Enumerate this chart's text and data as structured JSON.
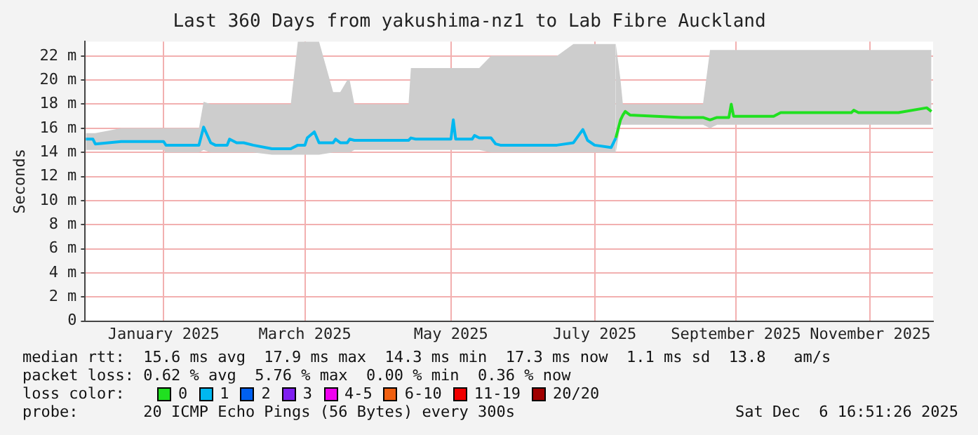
{
  "chart_data": {
    "type": "line",
    "title": "Last 360 Days from yakushima-nz1 to Lab Fibre Auckland",
    "ylabel": "Seconds",
    "xlim": [
      "2024-12-11T16:51",
      "2025-12-06T16:51"
    ],
    "xticks": [
      {
        "value": "2025-01-14",
        "label": "January 2025"
      },
      {
        "value": "2025-03-15",
        "label": "March 2025"
      },
      {
        "value": "2025-05-16",
        "label": "May 2025"
      },
      {
        "value": "2025-07-16",
        "label": "July 2025"
      },
      {
        "value": "2025-09-14",
        "label": "September 2025"
      },
      {
        "value": "2025-11-10",
        "label": "November 2025"
      }
    ],
    "ylim": [
      0,
      23.2
    ],
    "yticks": [
      0,
      {
        "value": 2,
        "label": "2 m"
      },
      {
        "value": 4,
        "label": "4 m"
      },
      {
        "value": 6,
        "label": "6 m"
      },
      {
        "value": 8,
        "label": "8 m"
      },
      {
        "value": 10,
        "label": "10 m"
      },
      {
        "value": 12,
        "label": "12 m"
      },
      {
        "value": 14,
        "label": "14 m"
      },
      {
        "value": 16,
        "label": "16 m"
      },
      {
        "value": 18,
        "label": "18 m"
      },
      {
        "value": 20,
        "label": "20 m"
      },
      {
        "value": 22,
        "label": "22 m"
      }
    ],
    "grid": true,
    "marker": "none",
    "legend": "bottom",
    "legend_title": "loss color:",
    "series": [
      {
        "name": "0",
        "color": "#20e020",
        "x": [
          "2025-07-25",
          "2025-07-27",
          "2025-07-28",
          "2025-07-29",
          "2025-07-31",
          "2025-08-22",
          "2025-08-31",
          "2025-09-03",
          "2025-09-06",
          "2025-09-11",
          "2025-09-12",
          "2025-09-13",
          "2025-09-30",
          "2025-10-03",
          "2025-11-02",
          "2025-11-03",
          "2025-11-05",
          "2025-11-22",
          "2025-12-04",
          "2025-12-06"
        ],
        "values": [
          15.2,
          16.7,
          17.1,
          17.4,
          17.1,
          16.9,
          16.9,
          16.7,
          16.9,
          16.9,
          18.0,
          17.0,
          17.0,
          17.3,
          17.3,
          17.5,
          17.3,
          17.3,
          17.7,
          17.4
        ],
        "lower": [
          14.0,
          16.3,
          16.3,
          16.3,
          16.3,
          16.3,
          16.3,
          16.0,
          16.3,
          16.3,
          16.3,
          16.3,
          16.3,
          16.3,
          16.3,
          16.3,
          16.3,
          16.3,
          16.3,
          16.3
        ],
        "upper": [
          23.0,
          20.0,
          18.0,
          18.0,
          18.0,
          18.0,
          18.0,
          22.5,
          22.5,
          22.5,
          22.5,
          22.5,
          22.5,
          22.5,
          22.5,
          22.5,
          22.5,
          22.5,
          22.5,
          22.5
        ]
      },
      {
        "name": "1",
        "color": "#00b8f0",
        "x": [
          "2024-12-12",
          "2024-12-15",
          "2024-12-16",
          "2024-12-27",
          "2025-01-14",
          "2025-01-15",
          "2025-01-29",
          "2025-01-31",
          "2025-02-03",
          "2025-02-05",
          "2025-02-10",
          "2025-02-11",
          "2025-02-14",
          "2025-02-17",
          "2025-02-21",
          "2025-03-01",
          "2025-03-09",
          "2025-03-12",
          "2025-03-15",
          "2025-03-16",
          "2025-03-19",
          "2025-03-21",
          "2025-03-27",
          "2025-03-28",
          "2025-03-30",
          "2025-04-02",
          "2025-04-03",
          "2025-04-05",
          "2025-04-28",
          "2025-04-29",
          "2025-05-01",
          "2025-05-16",
          "2025-05-17",
          "2025-05-18",
          "2025-05-25",
          "2025-05-26",
          "2025-05-28",
          "2025-06-02",
          "2025-06-04",
          "2025-06-06",
          "2025-06-30",
          "2025-07-07",
          "2025-07-11",
          "2025-07-13",
          "2025-07-16",
          "2025-07-23",
          "2025-07-25"
        ],
        "values": [
          15.1,
          15.1,
          14.7,
          14.9,
          14.9,
          14.6,
          14.6,
          16.1,
          14.8,
          14.6,
          14.6,
          15.1,
          14.8,
          14.8,
          14.6,
          14.3,
          14.3,
          14.6,
          14.6,
          15.2,
          15.7,
          14.8,
          14.8,
          15.1,
          14.8,
          14.8,
          15.1,
          15.0,
          15.0,
          15.2,
          15.1,
          15.1,
          16.7,
          15.1,
          15.1,
          15.4,
          15.2,
          15.2,
          14.7,
          14.6,
          14.6,
          14.8,
          15.9,
          15.0,
          14.6,
          14.4,
          15.2
        ],
        "lower": [
          14.2,
          14.2,
          14.2,
          14.2,
          14.2,
          14.0,
          14.0,
          14.2,
          14.0,
          14.0,
          14.0,
          14.0,
          14.0,
          14.0,
          14.0,
          13.8,
          13.8,
          13.8,
          13.8,
          13.8,
          13.8,
          13.8,
          14.0,
          14.0,
          14.0,
          14.0,
          14.0,
          14.2,
          14.2,
          14.2,
          14.2,
          14.2,
          14.2,
          14.2,
          14.2,
          14.2,
          14.2,
          14.0,
          14.0,
          14.0,
          14.0,
          14.0,
          14.0,
          14.0,
          14.0,
          14.0,
          14.0
        ],
        "upper": [
          15.6,
          15.6,
          15.6,
          16.0,
          16.0,
          16.0,
          16.0,
          18.2,
          18.0,
          18.0,
          18.0,
          18.0,
          18.0,
          18.0,
          18.0,
          18.0,
          18.0,
          23.2,
          23.2,
          23.2,
          23.2,
          23.2,
          19.0,
          19.0,
          19.0,
          20.0,
          20.0,
          18.0,
          18.0,
          21.0,
          21.0,
          21.0,
          21.0,
          21.0,
          21.0,
          21.0,
          21.0,
          22.0,
          22.0,
          22.0,
          22.0,
          23.0,
          23.0,
          23.0,
          23.0,
          23.0,
          23.0
        ]
      },
      {
        "name": "2",
        "color": "#0060f0"
      },
      {
        "name": "3",
        "color": "#8020f0"
      },
      {
        "name": "4-5",
        "color": "#f000f0"
      },
      {
        "name": "6-10",
        "color": "#f06010"
      },
      {
        "name": "11-19",
        "color": "#f00000"
      },
      {
        "name": "20/20",
        "color": "#a00000"
      }
    ],
    "annotations": [
      "median rtt:  15.6 ms avg  17.9 ms max  14.3 ms min  17.3 ms now  1.1 ms sd  13.8   am/s",
      "packet loss: 0.62 % avg  5.76 % max  0.00 % min  0.36 % now",
      "probe:       20 ICMP Echo Pings (56 Bytes) every 300s",
      "Sat Dec  6 16:51:26 2025"
    ]
  }
}
